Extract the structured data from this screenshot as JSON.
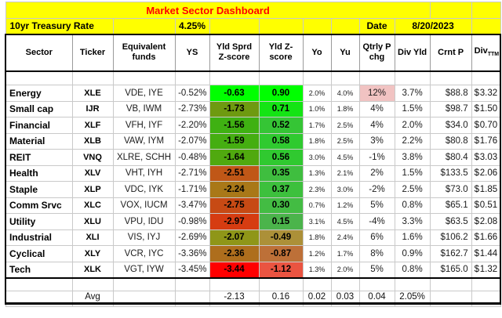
{
  "title": "Market Sector Dashboard",
  "info_row": {
    "label": "10yr Treasury Rate",
    "rate": "4.25%",
    "date_label": "Date",
    "date_value": "8/20/2023"
  },
  "columns": [
    {
      "label": "Sector"
    },
    {
      "label": "Ticker"
    },
    {
      "label": "Equivalent funds"
    },
    {
      "label": "YS"
    },
    {
      "label": "Yld Sprd Z-score"
    },
    {
      "label": "Yld Z-score"
    },
    {
      "label": "Yo"
    },
    {
      "label": "Yu"
    },
    {
      "label": "Qtrly P chg"
    },
    {
      "label": "Div Yld"
    },
    {
      "label": "Crnt P"
    },
    {
      "label": "Div",
      "subscript": "TTM"
    }
  ],
  "rows": [
    {
      "sector": "Energy",
      "ticker": "XLE",
      "funds": "VDE, IYE",
      "ys": "-0.52%",
      "sprd_z": "-0.63",
      "sprd_z_bg": "#00FF00",
      "yld_z": "0.90",
      "yld_z_bg": "#00FF00",
      "yo": "2.0%",
      "yu": "4.0%",
      "qtrly": "12%",
      "qtrly_bg": "#F1C3C2",
      "div_yld": "3.7%",
      "crnt_p": "$88.8",
      "div_ttm": "$3.32"
    },
    {
      "sector": "Small cap",
      "ticker": "IJR",
      "funds": "VB, IWM",
      "ys": "-2.73%",
      "sprd_z": "-1.73",
      "sprd_z_bg": "#6E9A10",
      "yld_z": "0.71",
      "yld_z_bg": "#14E414",
      "yo": "1.0%",
      "yu": "1.8%",
      "qtrly": "4%",
      "qtrly_bg": "",
      "div_yld": "1.5%",
      "crnt_p": "$98.7",
      "div_ttm": "$1.50"
    },
    {
      "sector": "Financial",
      "ticker": "XLF",
      "funds": "VFH, IYF",
      "ys": "-2.20%",
      "sprd_z": "-1.56",
      "sprd_z_bg": "#3FB112",
      "yld_z": "0.52",
      "yld_z_bg": "#35C535",
      "yo": "1.7%",
      "yu": "2.5%",
      "qtrly": "4%",
      "qtrly_bg": "",
      "div_yld": "2.0%",
      "crnt_p": "$34.0",
      "div_ttm": "$0.70"
    },
    {
      "sector": "Material",
      "ticker": "XLB",
      "funds": "VAW, IYM",
      "ys": "-2.07%",
      "sprd_z": "-1.59",
      "sprd_z_bg": "#45AE11",
      "yld_z": "0.58",
      "yld_z_bg": "#2FCA2F",
      "yo": "1.8%",
      "yu": "2.5%",
      "qtrly": "3%",
      "qtrly_bg": "",
      "div_yld": "2.2%",
      "crnt_p": "$80.8",
      "div_ttm": "$1.76"
    },
    {
      "sector": "REIT",
      "ticker": "VNQ",
      "funds": "XLRE, SCHH",
      "ys": "-0.48%",
      "sprd_z": "-1.64",
      "sprd_z_bg": "#50A90F",
      "yld_z": "0.56",
      "yld_z_bg": "#30C930",
      "yo": "3.0%",
      "yu": "4.5%",
      "qtrly": "-1%",
      "qtrly_bg": "",
      "div_yld": "3.8%",
      "crnt_p": "$80.4",
      "div_ttm": "$3.03"
    },
    {
      "sector": "Health",
      "ticker": "XLV",
      "funds": "VHT, IYH",
      "ys": "-2.71%",
      "sprd_z": "-2.51",
      "sprd_z_bg": "#C05717",
      "yld_z": "0.35",
      "yld_z_bg": "#3FBE3F",
      "yo": "1.3%",
      "yu": "2.1%",
      "qtrly": "2%",
      "qtrly_bg": "",
      "div_yld": "1.5%",
      "crnt_p": "$133.5",
      "div_ttm": "$2.06"
    },
    {
      "sector": "Staple",
      "ticker": "XLP",
      "funds": "VDC, IYK",
      "ys": "-1.71%",
      "sprd_z": "-2.24",
      "sprd_z_bg": "#A97818",
      "yld_z": "0.37",
      "yld_z_bg": "#3DC03D",
      "yo": "2.3%",
      "yu": "3.0%",
      "qtrly": "-2%",
      "qtrly_bg": "",
      "div_yld": "2.5%",
      "crnt_p": "$73.0",
      "div_ttm": "$1.85"
    },
    {
      "sector": "Comm Srvc",
      "ticker": "XLC",
      "funds": "VOX, IUCM",
      "ys": "-3.47%",
      "sprd_z": "-2.75",
      "sprd_z_bg": "#C74A14",
      "yld_z": "0.30",
      "yld_z_bg": "#43BC43",
      "yo": "0.7%",
      "yu": "1.2%",
      "qtrly": "5%",
      "qtrly_bg": "",
      "div_yld": "0.8%",
      "crnt_p": "$65.1",
      "div_ttm": "$0.51"
    },
    {
      "sector": "Utility",
      "ticker": "XLU",
      "funds": "VPU, IDU",
      "ys": "-0.98%",
      "sprd_z": "-2.97",
      "sprd_z_bg": "#D63C11",
      "yld_z": "0.15",
      "yld_z_bg": "#4BB44B",
      "yo": "3.1%",
      "yu": "4.5%",
      "qtrly": "-4%",
      "qtrly_bg": "",
      "div_yld": "3.3%",
      "crnt_p": "$63.5",
      "div_ttm": "$2.08"
    },
    {
      "sector": "Industrial",
      "ticker": "XLI",
      "funds": "VIS, IYJ",
      "ys": "-2.69%",
      "sprd_z": "-2.07",
      "sprd_z_bg": "#8F9618",
      "yld_z": "-0.49",
      "yld_z_bg": "#AC9038",
      "yo": "1.8%",
      "yu": "2.4%",
      "qtrly": "6%",
      "qtrly_bg": "",
      "div_yld": "1.6%",
      "crnt_p": "$106.2",
      "div_ttm": "$1.66"
    },
    {
      "sector": "Cyclical",
      "ticker": "XLY",
      "funds": "VCR, IYC",
      "ys": "-3.36%",
      "sprd_z": "-2.36",
      "sprd_z_bg": "#AE6E1D",
      "yld_z": "-0.87",
      "yld_z_bg": "#BD7038",
      "yo": "1.2%",
      "yu": "1.7%",
      "qtrly": "8%",
      "qtrly_bg": "",
      "div_yld": "0.9%",
      "crnt_p": "$162.7",
      "div_ttm": "$1.44"
    },
    {
      "sector": "Tech",
      "ticker": "XLK",
      "funds": "VGT, IYW",
      "ys": "-3.45%",
      "sprd_z": "-3.44",
      "sprd_z_bg": "#FF0000",
      "yld_z": "-1.12",
      "yld_z_bg": "#EA5441",
      "yo": "1.3%",
      "yu": "2.0%",
      "qtrly": "5%",
      "qtrly_bg": "",
      "div_yld": "0.8%",
      "crnt_p": "$165.0",
      "div_ttm": "$1.32"
    }
  ],
  "avg_row": {
    "label": "Avg",
    "sprd_z": "-2.13",
    "yld_z": "0.16",
    "yo": "0.02",
    "yu": "0.03",
    "qtrly": "0.04",
    "div_yld": "2.05%"
  },
  "colors": {
    "highlight_yellow": "#FFFF00",
    "title_red": "#FF0000",
    "qtrly_highlight_pink": "#F1C3C2",
    "zscore_best_green": "#00FF00",
    "zscore_worst_red": "#FF0000"
  }
}
